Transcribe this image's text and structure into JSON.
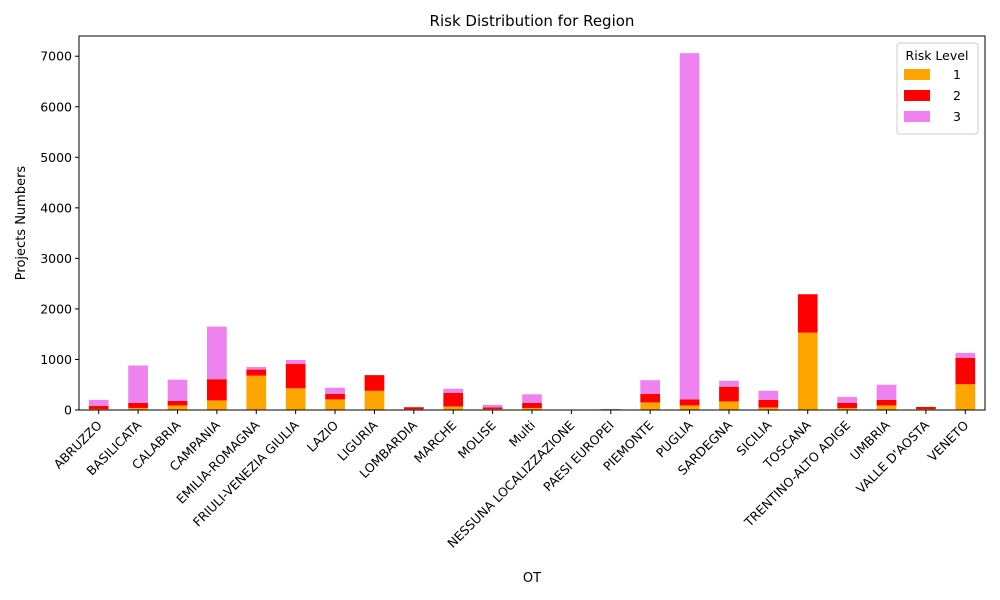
{
  "chart_data": {
    "type": "bar",
    "stacked": true,
    "title": "Risk Distribution for Region",
    "xlabel": "OT",
    "ylabel": "Projects Numbers",
    "ylim": [
      0,
      7400
    ],
    "yticks": [
      0,
      1000,
      2000,
      3000,
      4000,
      5000,
      6000,
      7000
    ],
    "grid": false,
    "legend": {
      "title": "Risk Level",
      "placement": "top-right"
    },
    "categories": [
      "ABRUZZO",
      "BASILICATA",
      "CALABRIA",
      "CAMPANIA",
      "EMILIA-ROMAGNA",
      "FRIULI-VENEZIA GIULIA",
      "LAZIO",
      "LIGURIA",
      "LOMBARDIA",
      "MARCHE",
      "MOLISE",
      "Multi",
      "NESSUNA LOCALIZZAZIONE",
      "PAESI EUROPEI",
      "PIEMONTE",
      "PUGLIA",
      "SARDEGNA",
      "SICILIA",
      "TOSCANA",
      "TRENTINO-ALTO ADIGE",
      "UMBRIA",
      "VALLE D'AOSTA",
      "VENETO"
    ],
    "series": [
      {
        "name": "1",
        "color": "#ffa500",
        "values": [
          20,
          40,
          90,
          190,
          680,
          430,
          210,
          380,
          15,
          70,
          20,
          40,
          0,
          5,
          150,
          90,
          170,
          50,
          1530,
          40,
          90,
          20,
          510
        ]
      },
      {
        "name": "2",
        "color": "#ff0000",
        "values": [
          60,
          100,
          90,
          420,
          120,
          480,
          110,
          310,
          40,
          270,
          30,
          100,
          0,
          5,
          170,
          120,
          290,
          150,
          760,
          100,
          110,
          40,
          520
        ]
      },
      {
        "name": "3",
        "color": "#ee82ee",
        "values": [
          120,
          740,
          420,
          1040,
          50,
          80,
          120,
          0,
          0,
          80,
          50,
          170,
          0,
          10,
          270,
          6850,
          120,
          180,
          0,
          120,
          300,
          0,
          100
        ]
      }
    ]
  }
}
